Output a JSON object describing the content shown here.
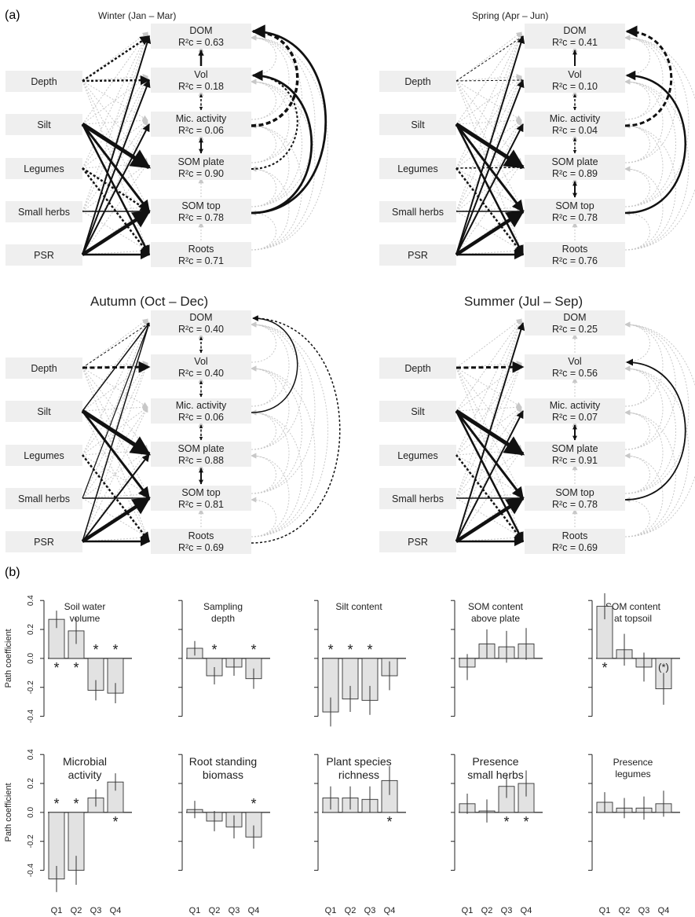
{
  "panel_a_label": "(a)",
  "panel_b_label": "(b)",
  "diagrams": [
    {
      "title": "Winter (Jan – Mar)",
      "r2": [
        "0.63",
        "0.18",
        "0.06",
        "0.90",
        "0.78",
        "0.71"
      ]
    },
    {
      "title": "Spring (Apr – Jun)",
      "r2": [
        "0.41",
        "0.10",
        "0.04",
        "0.89",
        "0.78",
        "0.76"
      ]
    },
    {
      "title": "Autumn (Oct – Dec)",
      "r2": [
        "0.40",
        "0.40",
        "0.06",
        "0.88",
        "0.81",
        "0.69"
      ]
    },
    {
      "title": "Summer (Jul – Sep)",
      "r2": [
        "0.25",
        "0.56",
        "0.07",
        "0.91",
        "0.78",
        "0.69"
      ]
    }
  ],
  "left_nodes": [
    "Depth",
    "Silt",
    "Legumes",
    "Small herbs",
    "PSR"
  ],
  "right_nodes": [
    "DOM",
    "Vol",
    "Mic. activity",
    "SOM plate",
    "SOM top",
    "Roots"
  ],
  "r2_label": "R²c =",
  "chart_data": {
    "type": "bar",
    "categories": [
      "Q1",
      "Q2",
      "Q3",
      "Q4"
    ],
    "ylabel": "Path coefficient",
    "ylim": [
      -0.5,
      0.45
    ],
    "yticks": [
      "0.4",
      "0.2",
      "0.0",
      "-0.2",
      "-0.4"
    ],
    "significance_mark": "*",
    "marginal_mark": "(*)",
    "panels": [
      {
        "title": [
          "Soil water",
          "volume"
        ],
        "values": [
          0.27,
          0.19,
          -0.22,
          -0.24
        ],
        "err": [
          0.06,
          0.09,
          0.07,
          0.07
        ],
        "sig": [
          true,
          true,
          true,
          true
        ]
      },
      {
        "title": [
          "Sampling",
          "depth"
        ],
        "values": [
          0.07,
          -0.12,
          -0.06,
          -0.14
        ],
        "err": [
          0.05,
          0.06,
          0.06,
          0.07
        ],
        "sig": [
          false,
          true,
          false,
          true
        ]
      },
      {
        "title": [
          "Silt content"
        ],
        "values": [
          -0.37,
          -0.28,
          -0.29,
          -0.12
        ],
        "err": [
          0.1,
          0.09,
          0.1,
          0.1
        ],
        "sig": [
          true,
          true,
          true,
          false
        ]
      },
      {
        "title": [
          "SOM content",
          "above plate"
        ],
        "values": [
          -0.06,
          0.1,
          0.08,
          0.1
        ],
        "err": [
          0.09,
          0.1,
          0.11,
          0.11
        ],
        "sig": [
          false,
          false,
          false,
          false
        ]
      },
      {
        "title": [
          "SOM content",
          "at topsoil"
        ],
        "values": [
          0.36,
          0.06,
          -0.06,
          -0.21
        ],
        "err": [
          0.09,
          0.11,
          0.1,
          0.11
        ],
        "sig": [
          true,
          false,
          false,
          "marginal"
        ]
      },
      {
        "title": [
          "Microbial",
          "activity"
        ],
        "values": [
          -0.46,
          -0.4,
          0.1,
          0.21
        ],
        "err": [
          0.09,
          0.1,
          0.06,
          0.06
        ],
        "sig": [
          true,
          true,
          false,
          true
        ]
      },
      {
        "title": [
          "Root standing",
          "biomass"
        ],
        "values": [
          0.02,
          -0.06,
          -0.1,
          -0.17
        ],
        "err": [
          0.06,
          0.07,
          0.08,
          0.08
        ],
        "sig": [
          false,
          false,
          false,
          true
        ]
      },
      {
        "title": [
          "Plant species",
          "richness"
        ],
        "values": [
          0.1,
          0.1,
          0.09,
          0.22
        ],
        "err": [
          0.08,
          0.08,
          0.09,
          0.1
        ],
        "sig": [
          false,
          false,
          false,
          true
        ]
      },
      {
        "title": [
          "Presence",
          "small herbs"
        ],
        "values": [
          0.06,
          0.01,
          0.18,
          0.2
        ],
        "err": [
          0.07,
          0.08,
          0.08,
          0.09
        ],
        "sig": [
          false,
          false,
          true,
          true
        ]
      },
      {
        "title": [
          "Presence",
          "legumes"
        ],
        "values": [
          0.07,
          0.03,
          0.03,
          0.06
        ],
        "err": [
          0.07,
          0.07,
          0.08,
          0.09
        ],
        "sig": [
          false,
          false,
          false,
          false
        ]
      }
    ]
  }
}
